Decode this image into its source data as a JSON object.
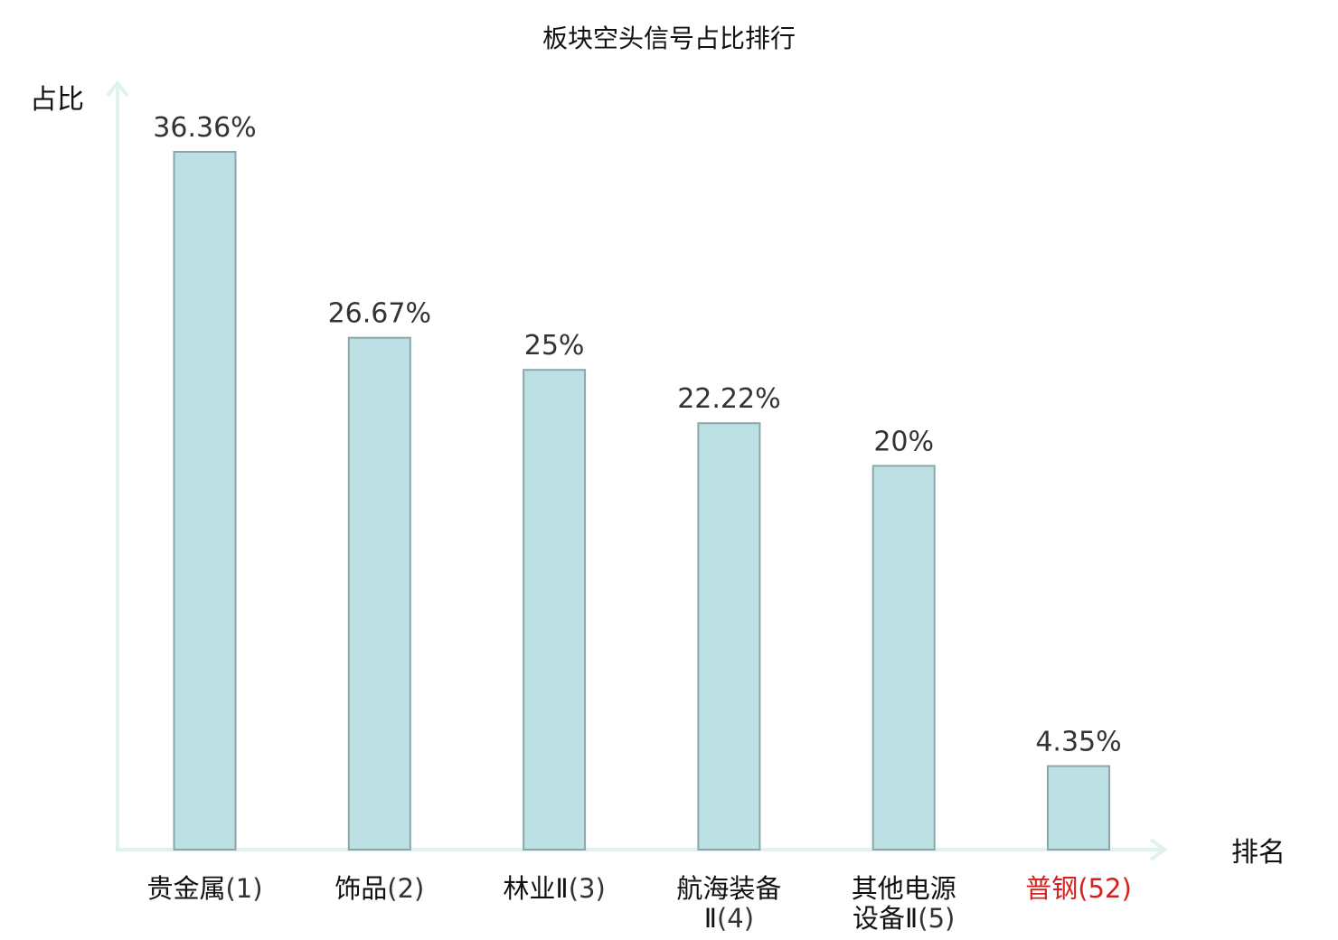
{
  "chart_data": {
    "type": "bar",
    "title": "板块空头信号占比排行",
    "ylabel": "占比",
    "xlabel": "排名",
    "ylim": [
      0,
      40
    ],
    "grid": false,
    "legend": "none",
    "categories": [
      {
        "name": [
          "贵金属"
        ],
        "rank": "(1)"
      },
      {
        "name": [
          "饰品"
        ],
        "rank": "(2)"
      },
      {
        "name": [
          "林业Ⅱ"
        ],
        "rank": "(3)"
      },
      {
        "name": [
          "航海装备",
          "Ⅱ"
        ],
        "rank": "(4)"
      },
      {
        "name": [
          "其他电源",
          "设备Ⅱ"
        ],
        "rank": "(5)"
      },
      {
        "name": [
          "普钢"
        ],
        "rank": "(52)"
      }
    ],
    "values": [
      36.36,
      26.67,
      25,
      22.22,
      20,
      4.35
    ],
    "value_labels": [
      "36.36%",
      "26.67%",
      "25%",
      "22.22%",
      "20%",
      "4.35%"
    ],
    "highlight_index": 5
  },
  "colors": {
    "bar_fill": "#bce0e3",
    "bar_stroke": "#8aa8ab",
    "axis": "#dff2f0",
    "highlight": "#d61f1f",
    "value_text": "#333333"
  }
}
